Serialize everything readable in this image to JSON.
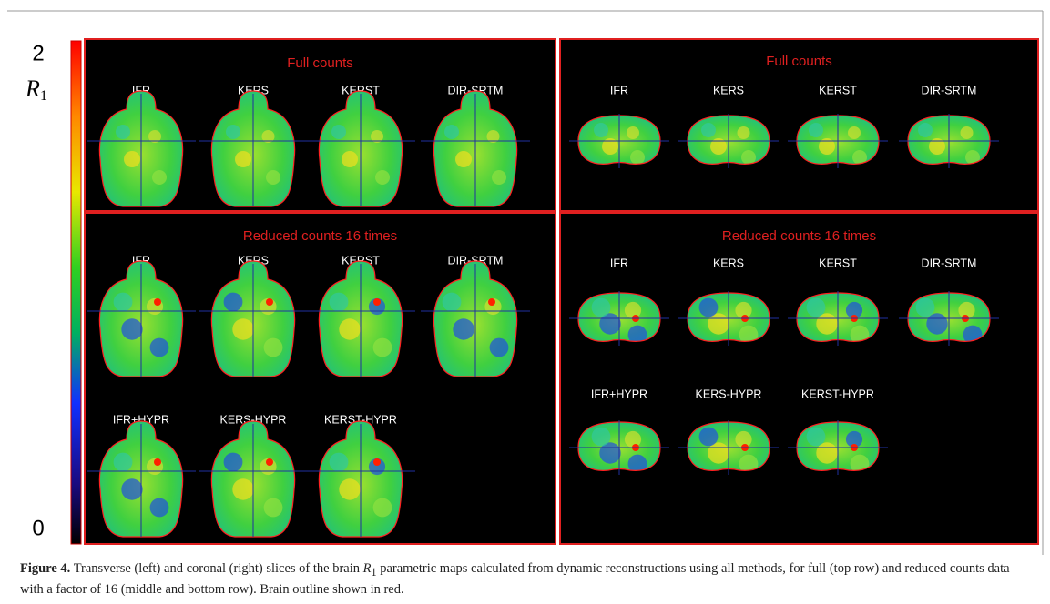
{
  "colorbar": {
    "max": "2",
    "symbol": "R",
    "subscript": "1",
    "min": "0"
  },
  "panels": [
    {
      "title": "Full counts",
      "rows": [
        [
          "IFR",
          "KERS",
          "KERST",
          "DIR-SRTM"
        ]
      ]
    },
    {
      "title": "Reduced counts 16 times",
      "rows": [
        [
          "IFR",
          "KERS",
          "KERST",
          "DIR-SRTM"
        ],
        [
          "IFR+HYPR",
          "KERS-HYPR",
          "KERST-HYPR"
        ]
      ]
    },
    {
      "title": "Full counts",
      "rows": [
        [
          "IFR",
          "KERS",
          "KERST",
          "DIR-SRTM"
        ]
      ]
    },
    {
      "title": "Reduced counts 16 times",
      "rows": [
        [
          "IFR",
          "KERS",
          "KERST",
          "DIR-SRTM"
        ],
        [
          "IFR+HYPR",
          "KERS-HYPR",
          "KERST-HYPR"
        ]
      ]
    }
  ],
  "caption": {
    "label": "Figure 4.",
    "text_before": "Transverse (left) and coronal (right) slices of the brain",
    "symbol": "R",
    "subscript": "1",
    "text_after": "parametric maps calculated from dynamic reconstructions using all methods, for full (top row) and reduced counts data with a factor of 16 (middle and bottom row). Brain outline shown in red."
  }
}
